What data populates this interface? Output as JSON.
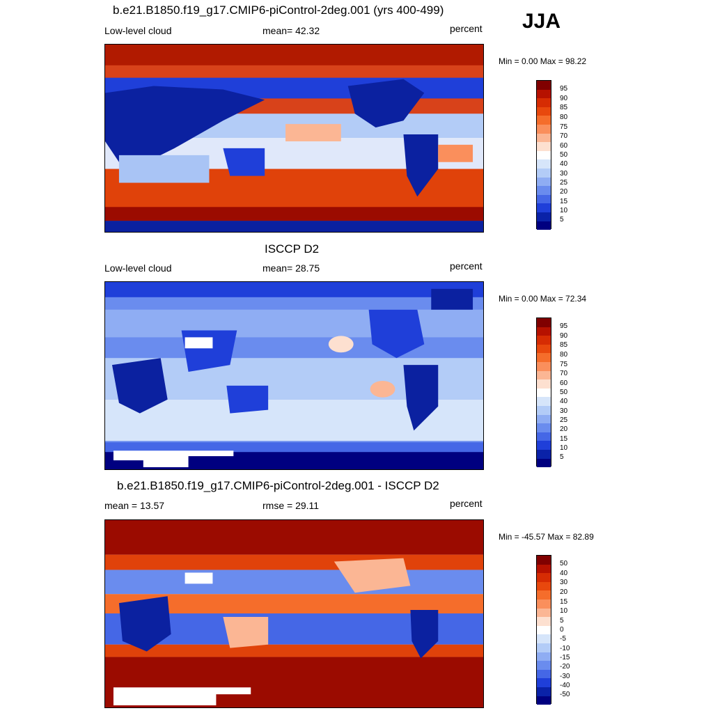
{
  "season": "JJA",
  "panels": [
    {
      "title": "b.e21.B1850.f19_g17.CMIP6-piControl-2deg.001 (yrs 400-499)",
      "left_label": "Low-level cloud",
      "center_label": "mean=  42.32",
      "right_label": "percent",
      "minmax": "Min =   0.00 Max =  98.22",
      "colorbar_labels": [
        "95",
        "90",
        "85",
        "80",
        "75",
        "70",
        "60",
        "50",
        "40",
        "30",
        "25",
        "20",
        "15",
        "10",
        "5"
      ]
    },
    {
      "title": "ISCCP D2",
      "left_label": "Low-level cloud",
      "center_label": "mean=  28.75",
      "right_label": "percent",
      "minmax": "Min =   0.00 Max =  72.34",
      "colorbar_labels": [
        "95",
        "90",
        "85",
        "80",
        "75",
        "70",
        "60",
        "50",
        "40",
        "30",
        "25",
        "20",
        "15",
        "10",
        "5"
      ]
    },
    {
      "title": "b.e21.B1850.f19_g17.CMIP6-piControl-2deg.001 - ISCCP D2",
      "left_label": "mean =  13.57",
      "center_label": "rmse =  29.11",
      "right_label": "percent",
      "minmax": "Min = -45.57 Max =  82.89",
      "colorbar_labels": [
        "50",
        "40",
        "30",
        "20",
        "15",
        "10",
        "5",
        "0",
        "-5",
        "-10",
        "-15",
        "-20",
        "-30",
        "-40",
        "-50"
      ]
    }
  ],
  "colors": {
    "colorbar": [
      "#800000",
      "#b61100",
      "#d62c03",
      "#e8480d",
      "#f56d2b",
      "#fa8f5c",
      "#fbb694",
      "#fde0d0",
      "#ffffff",
      "#d6e5fa",
      "#b3ccf7",
      "#8fadf3",
      "#6a8cee",
      "#4567e6",
      "#1f3fd9",
      "#0a22a8",
      "#000080"
    ],
    "map_red_dark": "#9b0b00",
    "map_red": "#e0420a",
    "map_blue_dark": "#0b21a0",
    "map_blue": "#2f55dc",
    "map_blue_light": "#a9c4f5",
    "missing": "#ffffff",
    "coast": "#1a1a1a"
  }
}
